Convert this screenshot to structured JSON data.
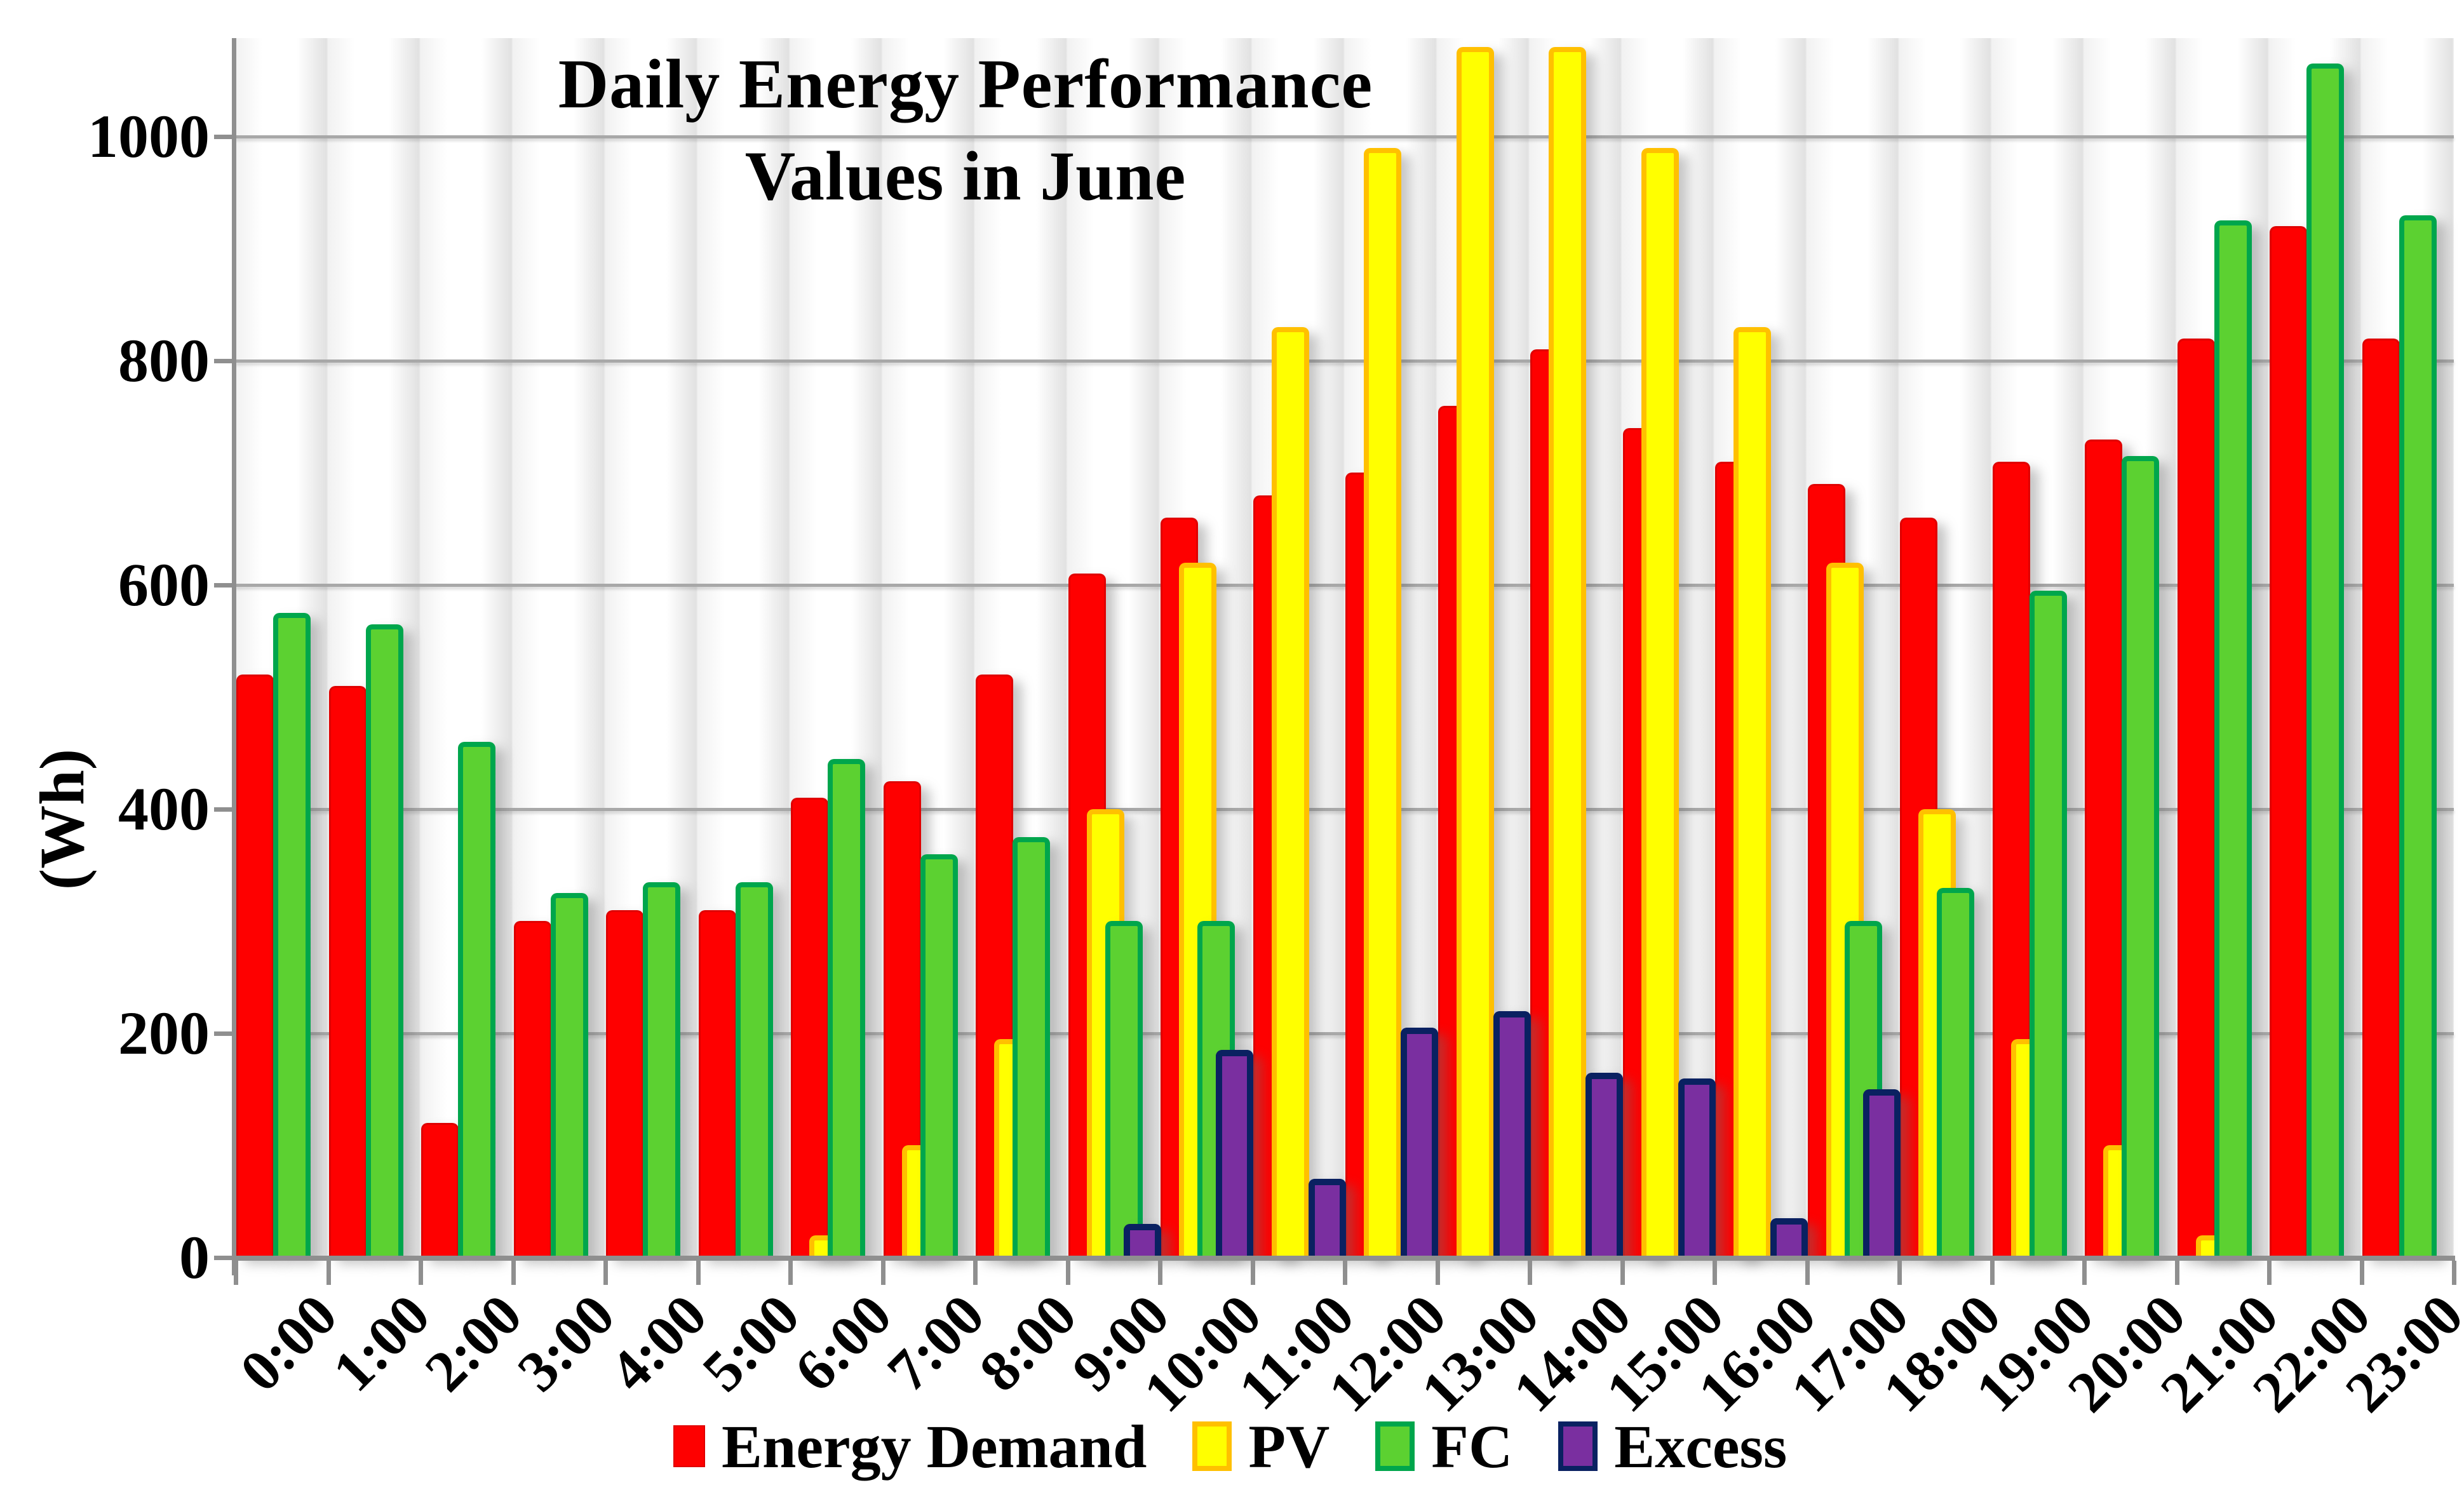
{
  "title": {
    "line1": "Daily Energy Performance",
    "line2": "Values in June"
  },
  "y_axis": {
    "label": "(Wh)",
    "ticks": [
      0,
      200,
      400,
      600,
      800,
      1000
    ]
  },
  "colors": {
    "grid": "#a8a8a8",
    "axis": "#8f8f8f",
    "text": "#000000"
  },
  "chart_data": {
    "type": "bar",
    "title": "Daily Energy Performance Values in June",
    "xlabel": "",
    "ylabel": "(Wh)",
    "ylim": [
      0,
      1100
    ],
    "grid": true,
    "gridline_step": 200,
    "legend_position": "bottom",
    "categories": [
      "0:00",
      "1:00",
      "2:00",
      "3:00",
      "4:00",
      "5:00",
      "6:00",
      "7:00",
      "8:00",
      "9:00",
      "10:00",
      "11:00",
      "12:00",
      "13:00",
      "14:00",
      "15:00",
      "16:00",
      "17:00",
      "18:00",
      "19:00",
      "20:00",
      "21:00",
      "22:00",
      "23:00"
    ],
    "series": [
      {
        "name": "Energy Demand",
        "color": "#fe0000",
        "border_color": "#e00000",
        "border_px": 3,
        "values": [
          520,
          510,
          120,
          300,
          310,
          310,
          410,
          425,
          520,
          610,
          660,
          680,
          700,
          760,
          810,
          740,
          710,
          690,
          660,
          710,
          730,
          820,
          920,
          820
        ]
      },
      {
        "name": "PV",
        "color": "#ffff00",
        "border_color": "#ffc000",
        "border_px": 8,
        "values": [
          0,
          0,
          0,
          0,
          0,
          0,
          20,
          100,
          195,
          400,
          620,
          830,
          990,
          1080,
          1080,
          990,
          830,
          620,
          400,
          195,
          100,
          20,
          0,
          0
        ]
      },
      {
        "name": "FC",
        "color": "#5cd131",
        "border_color": "#00a64c",
        "border_px": 8,
        "values": [
          575,
          565,
          460,
          325,
          335,
          335,
          445,
          360,
          375,
          300,
          300,
          0,
          0,
          0,
          0,
          0,
          0,
          300,
          330,
          595,
          715,
          925,
          1065,
          930
        ]
      },
      {
        "name": "Excess",
        "color": "#7a2fa0",
        "border_color": "#0a2161",
        "border_px": 10,
        "values": [
          0,
          0,
          0,
          0,
          0,
          0,
          0,
          0,
          0,
          30,
          185,
          70,
          205,
          220,
          165,
          160,
          35,
          150,
          0,
          0,
          0,
          0,
          0,
          0
        ]
      }
    ]
  }
}
